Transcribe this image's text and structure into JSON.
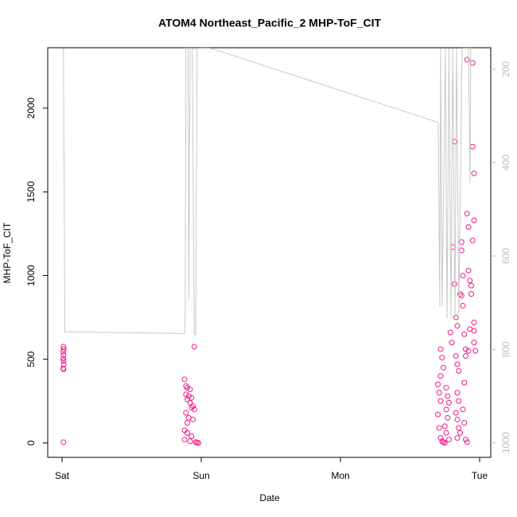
{
  "chart_data": {
    "type": "scatter",
    "title": "ATOM4 Northeast_Pacific_2 MHP-ToF_CIT",
    "x_label": "Date",
    "y_label": "MHP-ToF_CIT",
    "xlim": [
      -0.103,
      3.08
    ],
    "xticks": [
      {
        "value": 0,
        "label": "Sat"
      },
      {
        "value": 1,
        "label": "Sun"
      },
      {
        "value": 2,
        "label": "Mon"
      },
      {
        "value": 3,
        "label": "Tue"
      }
    ],
    "ylim": [
      -86,
      2361
    ],
    "yticks": [
      0,
      500,
      1000,
      1500,
      2000
    ],
    "y2lim": [
      1031,
      154
    ],
    "y2ticks": [
      200,
      400,
      600,
      800,
      1000
    ],
    "series": [
      {
        "type": "scatter",
        "color": "#f0188c",
        "x": [
          0.01,
          0.012,
          0.008,
          0.011,
          0.009,
          0.01,
          0.012,
          0.008,
          0.011,
          0.01,
          0.88,
          0.89,
          0.9,
          0.92,
          0.89,
          0.91,
          0.93,
          0.9,
          0.92,
          0.94,
          0.93,
          0.95,
          0.89,
          0.91,
          0.94,
          0.9,
          0.88,
          0.9,
          0.93,
          0.88,
          0.92,
          0.96,
          0.97,
          0.98,
          0.95,
          2.7,
          2.71,
          2.72,
          2.7,
          2.71,
          2.72,
          2.73,
          2.74,
          2.75,
          2.72,
          2.73,
          2.74,
          2.72,
          2.76,
          2.77,
          2.78,
          2.76,
          2.77,
          2.75,
          2.76,
          2.78,
          2.79,
          2.8,
          2.81,
          2.82,
          2.82,
          2.83,
          2.84,
          2.83,
          2.84,
          2.85,
          2.84,
          2.85,
          2.83,
          2.84,
          2.85,
          2.86,
          2.84,
          2.86,
          2.87,
          2.87,
          2.88,
          2.88,
          2.87,
          2.89,
          2.9,
          2.91,
          2.91,
          2.92,
          2.92,
          2.93,
          2.94,
          2.9,
          2.89,
          2.88,
          2.89,
          2.9,
          2.91,
          2.95,
          2.95,
          2.96,
          2.96,
          2.95,
          2.94,
          2.96,
          2.96,
          2.96,
          2.97,
          2.93,
          2.92
        ],
        "values": [
          575,
          560,
          545,
          525,
          505,
          490,
          470,
          445,
          440,
          5,
          380,
          340,
          330,
          320,
          290,
          280,
          270,
          260,
          240,
          220,
          210,
          200,
          180,
          150,
          140,
          120,
          75,
          60,
          40,
          20,
          10,
          5,
          3,
          0,
          575,
          350,
          300,
          250,
          170,
          90,
          30,
          10,
          5,
          0,
          560,
          510,
          450,
          400,
          330,
          280,
          240,
          200,
          150,
          100,
          60,
          20,
          660,
          600,
          1170,
          1800,
          950,
          750,
          700,
          520,
          470,
          430,
          300,
          250,
          180,
          140,
          90,
          60,
          30,
          890,
          880,
          1150,
          1000,
          820,
          1200,
          650,
          560,
          1370,
          2290,
          1290,
          1030,
          970,
          890,
          520,
          360,
          200,
          120,
          20,
          5,
          2270,
          1770,
          1610,
          1330,
          1210,
          940,
          720,
          670,
          600,
          550,
          680,
          550
        ]
      },
      {
        "type": "line",
        "axis": "y2",
        "color": "#c8c8c8",
        "x": [
          0.01,
          0.02,
          0.88,
          0.885,
          0.89,
          0.905,
          0.91,
          0.92,
          0.935,
          0.95,
          0.96,
          0.97,
          1.069,
          2.703,
          2.714,
          2.72,
          2.731,
          2.754,
          2.766,
          2.78,
          2.794,
          2.806,
          2.823,
          2.834,
          2.851,
          2.874,
          2.92,
          2.931,
          2.937,
          2.949
        ],
        "values": [
          155,
          762,
          766,
          720,
          155,
          155,
          694,
          155,
          155,
          766,
          769,
          155,
          155,
          314,
          708,
          155,
          708,
          155,
          733,
          155,
          733,
          155,
          733,
          155,
          724,
          155,
          155,
          444,
          155,
          155
        ]
      }
    ]
  }
}
